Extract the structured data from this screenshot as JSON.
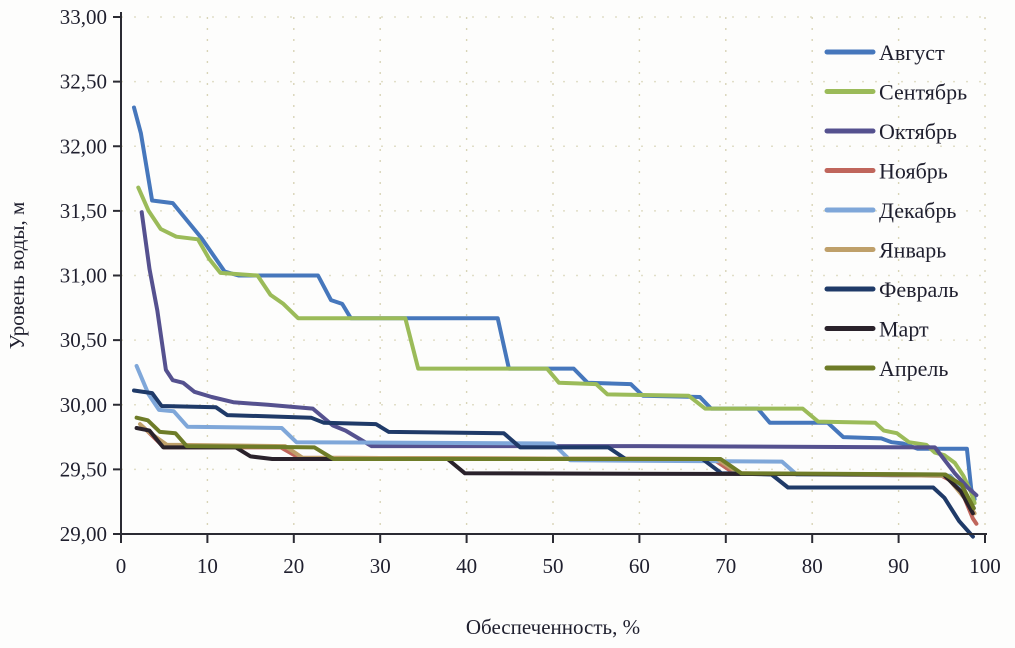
{
  "chart_data": {
    "type": "line",
    "title": "",
    "xlabel": "Обеспеченность, %",
    "ylabel": "Уровень воды, м",
    "xlim": [
      0,
      100
    ],
    "ylim": [
      29.0,
      33.0
    ],
    "x_ticks": [
      0,
      10,
      20,
      30,
      40,
      50,
      60,
      70,
      80,
      90,
      100
    ],
    "x_tick_labels": [
      "0",
      "10",
      "20",
      "30",
      "40",
      "50",
      "60",
      "70",
      "80",
      "90",
      "100"
    ],
    "y_ticks": [
      29.0,
      29.5,
      30.0,
      30.5,
      31.0,
      31.5,
      32.0,
      32.5,
      33.0
    ],
    "y_tick_labels": [
      "29,00",
      "29,50",
      "30,00",
      "30,50",
      "31,00",
      "31,50",
      "32,00",
      "32,50",
      "33,00"
    ],
    "grid": "faint dotted gridlines at each x=10% and y=0.5m",
    "legend_position": "inside-top-right",
    "line_width": 4,
    "series": [
      {
        "name": "Август",
        "color": "#4677BC",
        "points": [
          [
            1.5,
            32.3
          ],
          [
            2.3,
            32.1
          ],
          [
            3.6,
            31.58
          ],
          [
            6.0,
            31.56
          ],
          [
            9.3,
            31.29
          ],
          [
            12.0,
            31.03
          ],
          [
            13.6,
            31.0
          ],
          [
            22.8,
            31.0
          ],
          [
            24.3,
            30.81
          ],
          [
            25.6,
            30.78
          ],
          [
            26.6,
            30.67
          ],
          [
            43.6,
            30.67
          ],
          [
            44.9,
            30.28
          ],
          [
            52.4,
            30.28
          ],
          [
            54.0,
            30.17
          ],
          [
            59.0,
            30.16
          ],
          [
            60.4,
            30.07
          ],
          [
            67.0,
            30.06
          ],
          [
            68.3,
            29.97
          ],
          [
            73.7,
            29.97
          ],
          [
            75.1,
            29.86
          ],
          [
            81.8,
            29.86
          ],
          [
            83.6,
            29.75
          ],
          [
            88.0,
            29.74
          ],
          [
            89.2,
            29.71
          ],
          [
            90.5,
            29.7
          ],
          [
            92.2,
            29.66
          ],
          [
            97.9,
            29.66
          ],
          [
            98.4,
            29.35
          ],
          [
            98.8,
            29.27
          ]
        ]
      },
      {
        "name": "Сентябрь",
        "color": "#9BBB59",
        "points": [
          [
            2.0,
            31.68
          ],
          [
            3.2,
            31.5
          ],
          [
            4.6,
            31.36
          ],
          [
            6.4,
            31.3
          ],
          [
            8.9,
            31.28
          ],
          [
            10.2,
            31.13
          ],
          [
            11.5,
            31.02
          ],
          [
            15.8,
            31.0
          ],
          [
            17.3,
            30.85
          ],
          [
            18.8,
            30.78
          ],
          [
            20.5,
            30.67
          ],
          [
            32.9,
            30.67
          ],
          [
            34.4,
            30.28
          ],
          [
            49.3,
            30.28
          ],
          [
            50.7,
            30.17
          ],
          [
            55.0,
            30.16
          ],
          [
            56.3,
            30.08
          ],
          [
            65.7,
            30.07
          ],
          [
            67.6,
            29.97
          ],
          [
            78.9,
            29.97
          ],
          [
            80.7,
            29.87
          ],
          [
            87.3,
            29.86
          ],
          [
            88.3,
            29.8
          ],
          [
            89.8,
            29.78
          ],
          [
            91.2,
            29.71
          ],
          [
            93.2,
            29.69
          ],
          [
            94.2,
            29.63
          ],
          [
            95.3,
            29.61
          ],
          [
            96.5,
            29.55
          ],
          [
            97.5,
            29.45
          ],
          [
            98.4,
            29.32
          ],
          [
            98.8,
            29.24
          ]
        ]
      },
      {
        "name": "Октябрь",
        "color": "#55518F",
        "points": [
          [
            2.4,
            31.49
          ],
          [
            3.3,
            31.05
          ],
          [
            4.2,
            30.73
          ],
          [
            5.2,
            30.27
          ],
          [
            6.0,
            30.19
          ],
          [
            7.2,
            30.17
          ],
          [
            8.5,
            30.1
          ],
          [
            10.5,
            30.06
          ],
          [
            13.0,
            30.02
          ],
          [
            17.0,
            30.0
          ],
          [
            22.2,
            29.97
          ],
          [
            24.5,
            29.84
          ],
          [
            26.0,
            29.8
          ],
          [
            27.5,
            29.74
          ],
          [
            29.0,
            29.68
          ],
          [
            60.0,
            29.68
          ],
          [
            94.2,
            29.67
          ],
          [
            96.5,
            29.47
          ],
          [
            98.0,
            29.36
          ],
          [
            99.0,
            29.3
          ]
        ]
      },
      {
        "name": "Ноябрь",
        "color": "#C0665C",
        "points": [
          [
            3.0,
            29.8
          ],
          [
            5.0,
            29.67
          ],
          [
            18.5,
            29.67
          ],
          [
            20.6,
            29.59
          ],
          [
            68.5,
            29.58
          ],
          [
            71.0,
            29.47
          ],
          [
            95.0,
            29.45
          ],
          [
            97.0,
            29.38
          ],
          [
            98.6,
            29.12
          ],
          [
            99.0,
            29.08
          ]
        ]
      },
      {
        "name": "Декабрь",
        "color": "#7FA7D9",
        "points": [
          [
            1.8,
            30.3
          ],
          [
            3.2,
            30.08
          ],
          [
            4.4,
            29.96
          ],
          [
            6.1,
            29.95
          ],
          [
            7.7,
            29.83
          ],
          [
            18.6,
            29.82
          ],
          [
            20.3,
            29.71
          ],
          [
            50.0,
            29.7
          ],
          [
            52.0,
            29.57
          ],
          [
            76.5,
            29.56
          ],
          [
            78.2,
            29.46
          ],
          [
            96.0,
            29.45
          ],
          [
            97.5,
            29.33
          ],
          [
            98.7,
            29.2
          ]
        ]
      },
      {
        "name": "Январь",
        "color": "#BFA06A",
        "points": [
          [
            2.2,
            29.85
          ],
          [
            3.2,
            29.79
          ],
          [
            5.3,
            29.69
          ],
          [
            19.0,
            29.68
          ],
          [
            21.0,
            29.59
          ],
          [
            69.0,
            29.58
          ],
          [
            71.5,
            29.47
          ],
          [
            95.5,
            29.45
          ],
          [
            97.6,
            29.28
          ],
          [
            98.8,
            29.16
          ]
        ]
      },
      {
        "name": "Февраль",
        "color": "#1F3A68",
        "points": [
          [
            1.5,
            30.11
          ],
          [
            3.6,
            30.09
          ],
          [
            4.7,
            29.99
          ],
          [
            11.0,
            29.98
          ],
          [
            12.3,
            29.92
          ],
          [
            22.0,
            29.9
          ],
          [
            23.5,
            29.86
          ],
          [
            29.5,
            29.85
          ],
          [
            31.0,
            29.79
          ],
          [
            44.3,
            29.78
          ],
          [
            46.2,
            29.67
          ],
          [
            56.4,
            29.67
          ],
          [
            58.4,
            29.58
          ],
          [
            67.3,
            29.58
          ],
          [
            69.5,
            29.47
          ],
          [
            75.3,
            29.46
          ],
          [
            77.2,
            29.36
          ],
          [
            94.0,
            29.36
          ],
          [
            95.3,
            29.28
          ],
          [
            97.0,
            29.1
          ],
          [
            98.6,
            28.98
          ]
        ]
      },
      {
        "name": "Март",
        "color": "#2A222B",
        "points": [
          [
            1.8,
            29.82
          ],
          [
            3.3,
            29.8
          ],
          [
            4.9,
            29.67
          ],
          [
            13.3,
            29.67
          ],
          [
            15.0,
            29.6
          ],
          [
            17.5,
            29.58
          ],
          [
            37.8,
            29.58
          ],
          [
            39.8,
            29.47
          ],
          [
            95.2,
            29.46
          ],
          [
            97.2,
            29.33
          ],
          [
            98.6,
            29.16
          ]
        ]
      },
      {
        "name": "Апрель",
        "color": "#6E7C28",
        "points": [
          [
            1.8,
            29.9
          ],
          [
            3.1,
            29.88
          ],
          [
            4.5,
            29.79
          ],
          [
            6.3,
            29.78
          ],
          [
            7.6,
            29.68
          ],
          [
            22.4,
            29.67
          ],
          [
            24.6,
            29.58
          ],
          [
            69.4,
            29.58
          ],
          [
            71.8,
            29.47
          ],
          [
            95.4,
            29.46
          ],
          [
            97.3,
            29.38
          ],
          [
            98.7,
            29.2
          ]
        ]
      }
    ],
    "colors": {
      "axis": "#2b2b33",
      "grid_dots": "#cfcba6",
      "text": "#1f1f2e",
      "background": "#fdfdfc"
    }
  }
}
